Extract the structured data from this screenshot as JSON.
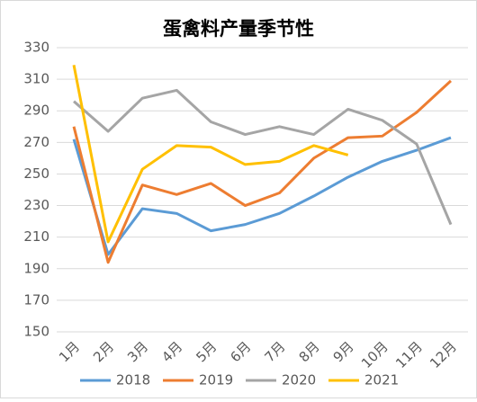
{
  "chart_data": {
    "type": "line",
    "title": "蛋禽料产量季节性",
    "categories": [
      "1月",
      "2月",
      "3月",
      "4月",
      "5月",
      "6月",
      "7月",
      "8月",
      "9月",
      "10月",
      "11月",
      "12月"
    ],
    "series": [
      {
        "name": "2018",
        "color": "#5b9bd5",
        "values": [
          272,
          199,
          228,
          225,
          214,
          218,
          225,
          236,
          248,
          258,
          265,
          273
        ]
      },
      {
        "name": "2019",
        "color": "#ed7d31",
        "values": [
          280,
          194,
          243,
          237,
          244,
          230,
          238,
          260,
          273,
          274,
          289,
          309
        ]
      },
      {
        "name": "2020",
        "color": "#a5a5a5",
        "values": [
          296,
          277,
          298,
          303,
          283,
          275,
          280,
          275,
          291,
          284,
          269,
          218
        ]
      },
      {
        "name": "2021",
        "color": "#ffc000",
        "values": [
          319,
          207,
          253,
          268,
          267,
          256,
          258,
          268,
          262,
          null,
          null,
          null
        ]
      }
    ],
    "ylim": [
      150,
      330
    ],
    "yticks": [
      150,
      170,
      190,
      210,
      230,
      250,
      270,
      290,
      310,
      330
    ],
    "grid": true
  }
}
